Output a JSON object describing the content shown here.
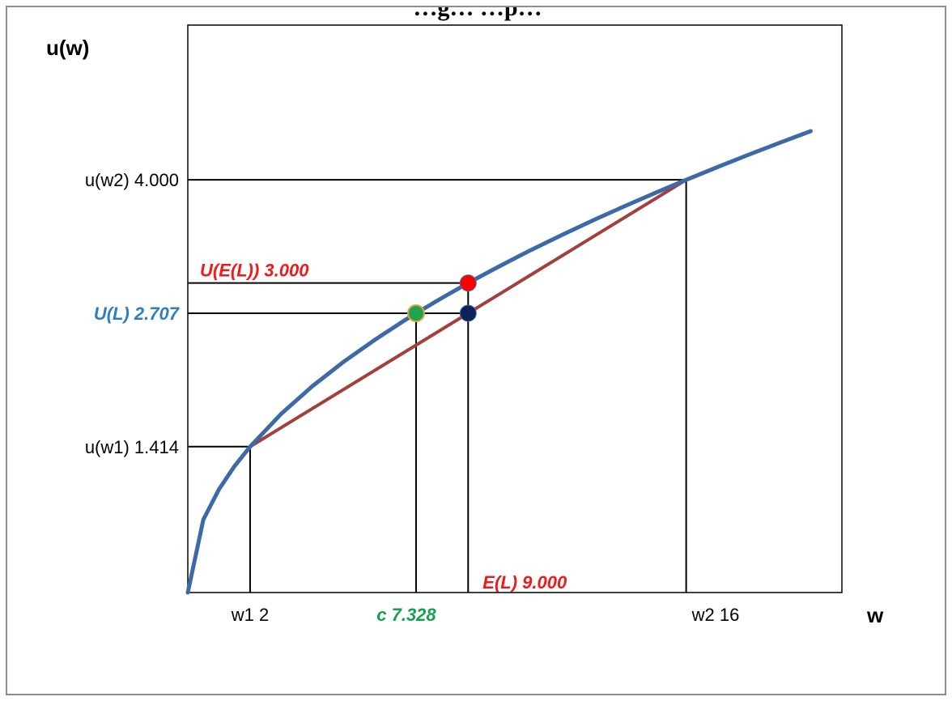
{
  "chart_data": {
    "type": "line",
    "title": "…g…                                                              …p…",
    "ylabel": "u(w)",
    "xlabel": "w",
    "utility_curve": {
      "function": "u(w) = sqrt(w)",
      "x": [
        0,
        0.5,
        1,
        1.5,
        2,
        3,
        4,
        5,
        6,
        7,
        8,
        9,
        10,
        11,
        12,
        13,
        14,
        15,
        16,
        17,
        18,
        19,
        20
      ],
      "y": [
        0,
        0.707,
        1.0,
        1.225,
        1.414,
        1.732,
        2.0,
        2.236,
        2.449,
        2.646,
        2.828,
        3.0,
        3.162,
        3.317,
        3.464,
        3.606,
        3.742,
        3.873,
        4.0,
        4.123,
        4.243,
        4.359,
        4.472
      ],
      "color": "#3d6aa6"
    },
    "chord": {
      "x": [
        2,
        16
      ],
      "y": [
        1.414,
        4.0
      ],
      "color": "#a1403c"
    },
    "x_ticks": [
      {
        "value": 2,
        "label": "w1 2",
        "color": "#000000"
      },
      {
        "value": 7.328,
        "label": "c 7.328",
        "color": "#12a350"
      },
      {
        "value": 9.0,
        "label": "E(L) 9.000",
        "color": "#ee1b1b"
      },
      {
        "value": 16,
        "label": "w2 16",
        "color": "#000000"
      }
    ],
    "y_ticks": [
      {
        "value": 1.414,
        "label": "u(w1) 1.414",
        "color": "#000000"
      },
      {
        "value": 2.707,
        "label": "U(L) 2.707",
        "color": "#2f7fc0"
      },
      {
        "value": 3.0,
        "label": "U(E(L)) 3.000",
        "color": "#ee1b1b"
      },
      {
        "value": 4.0,
        "label": "u(w2) 4.000",
        "color": "#000000"
      }
    ],
    "points": [
      {
        "name": "U(E(L))",
        "x": 9.0,
        "y": 3.0,
        "color": "#ff0000"
      },
      {
        "name": "U(L)",
        "x": 9.0,
        "y": 2.707,
        "color": "#0d2358"
      },
      {
        "name": "certainty-equivalent",
        "x": 7.328,
        "y": 2.707,
        "color": "#1ea34e",
        "edge": "#e0a23a"
      }
    ],
    "xlim": [
      0,
      21
    ],
    "ylim": [
      0,
      5.5
    ]
  }
}
